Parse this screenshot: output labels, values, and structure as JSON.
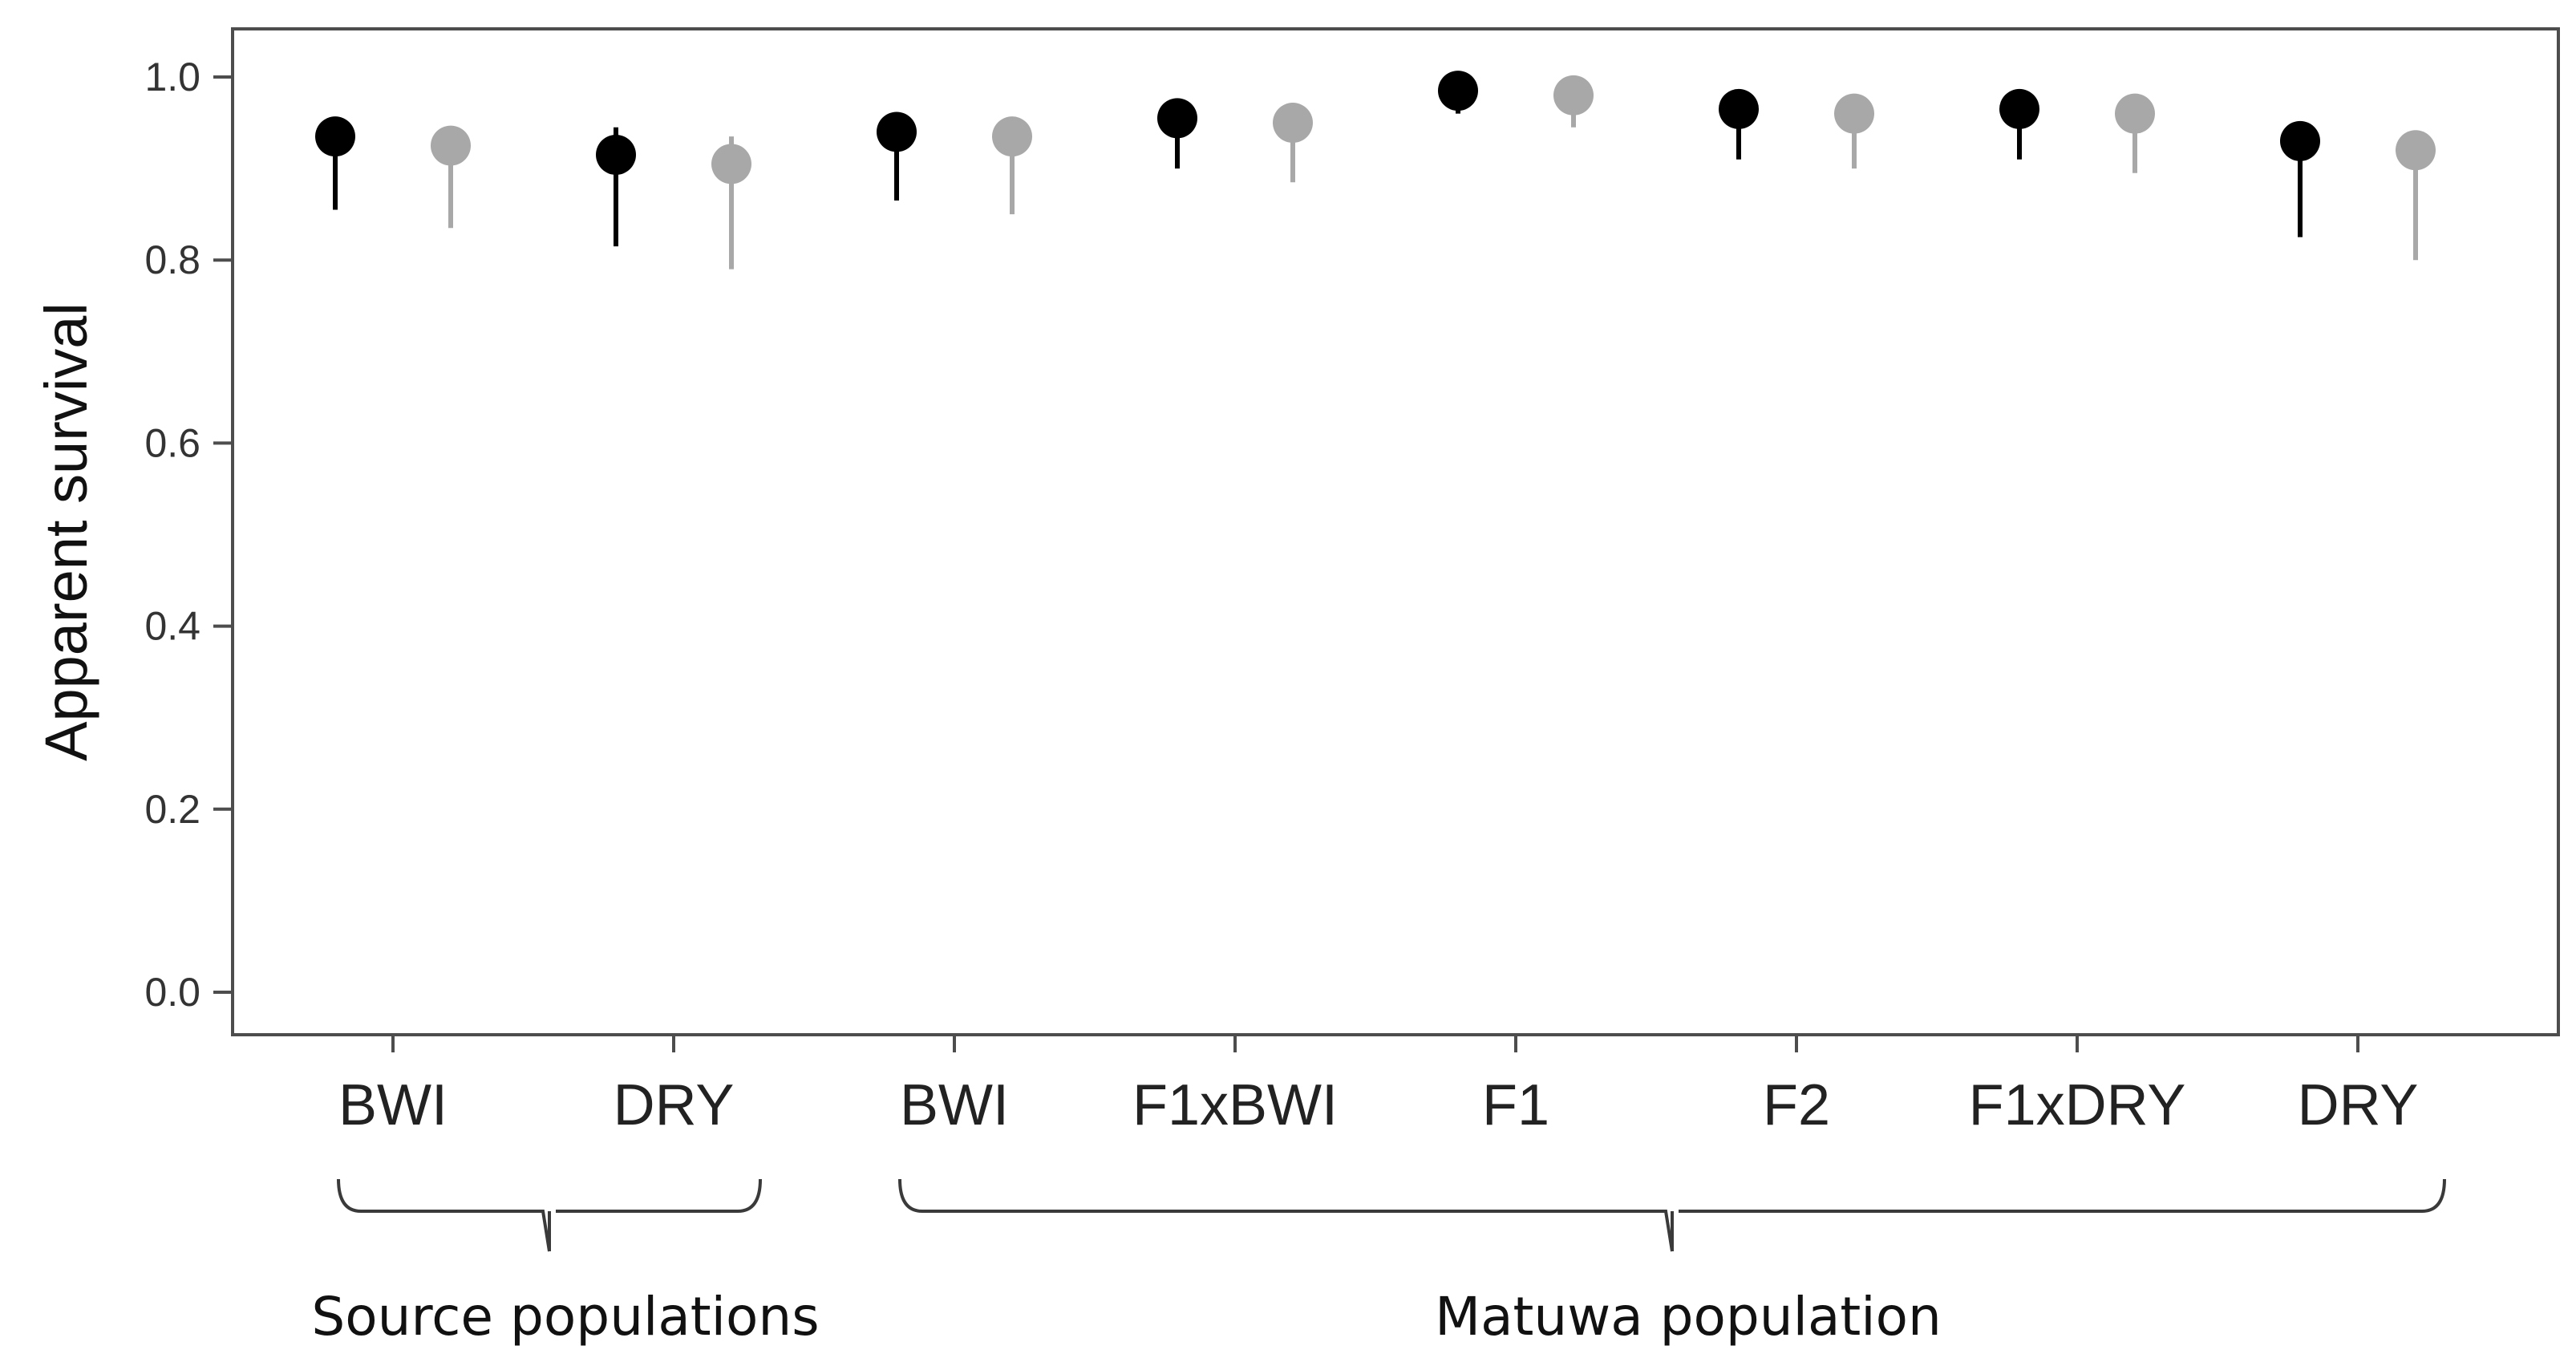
{
  "chart_data": {
    "type": "scatter",
    "title": "",
    "ylabel": "Apparent survival",
    "xlabel": "",
    "ylim": [
      -0.05,
      1.05
    ],
    "yticks": [
      0.0,
      0.2,
      0.4,
      0.6,
      0.8,
      1.0
    ],
    "ytick_labels": [
      "0.0",
      "0.2",
      "0.4",
      "0.6",
      "0.8",
      "1.0"
    ],
    "categories": [
      "BWI",
      "DRY",
      "BWI",
      "F1xBWI",
      "F1",
      "F2",
      "F1xDRY",
      "DRY"
    ],
    "groups": [
      {
        "label": "Source populations",
        "start": 0,
        "end": 1
      },
      {
        "label": "Matuwa population",
        "start": 2,
        "end": 7
      }
    ],
    "series": [
      {
        "name": "series-1",
        "color": "#000000",
        "values": [
          0.935,
          0.915,
          0.94,
          0.955,
          0.985,
          0.965,
          0.965,
          0.93
        ],
        "lower": [
          0.855,
          0.815,
          0.865,
          0.9,
          0.96,
          0.91,
          0.91,
          0.825
        ],
        "upper": [
          0.95,
          0.945,
          0.95,
          0.965,
          0.99,
          0.975,
          0.975,
          0.945
        ]
      },
      {
        "name": "series-2",
        "color": "#a8a8a8",
        "values": [
          0.925,
          0.905,
          0.935,
          0.95,
          0.98,
          0.96,
          0.96,
          0.92
        ],
        "lower": [
          0.835,
          0.79,
          0.85,
          0.885,
          0.945,
          0.9,
          0.895,
          0.8
        ],
        "upper": [
          0.94,
          0.935,
          0.945,
          0.96,
          0.985,
          0.97,
          0.97,
          0.94
        ]
      }
    ]
  }
}
